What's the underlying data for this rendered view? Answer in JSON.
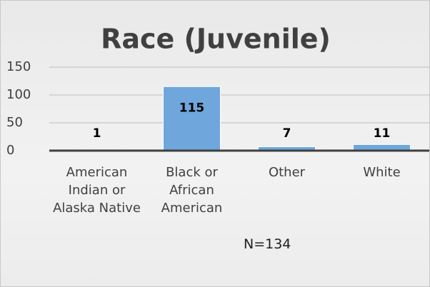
{
  "chart_data": {
    "type": "bar",
    "title": "Race (Juvenile)",
    "categories": [
      "American Indian or Alaska Native",
      "Black or African American",
      "Other",
      "White"
    ],
    "values": [
      1,
      115,
      7,
      11
    ],
    "color": "#6fa7dc",
    "ylim": [
      0,
      150
    ],
    "yticks": [
      0,
      50,
      100,
      150
    ],
    "grid": true,
    "annotation": "N=134"
  }
}
